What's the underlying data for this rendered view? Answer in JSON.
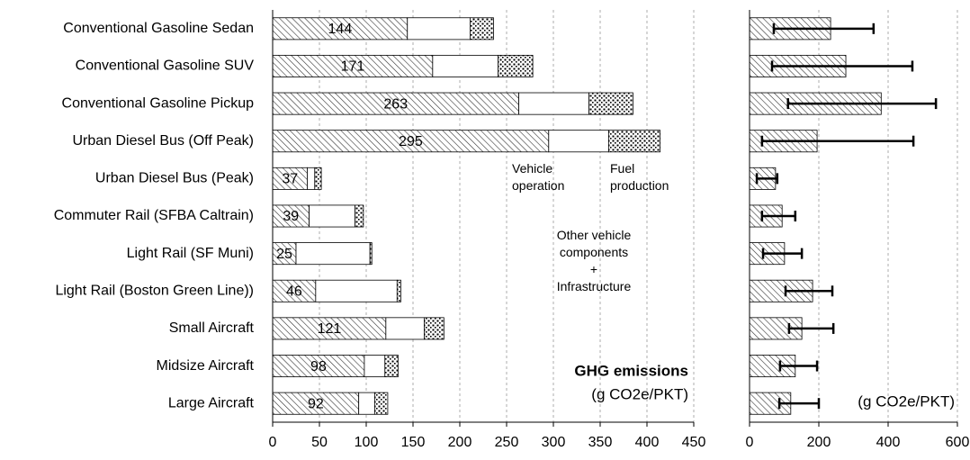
{
  "chart_data": [
    {
      "type": "stacked_bar",
      "orientation": "horizontal",
      "categories": [
        "Conventional Gasoline Sedan",
        "Conventional Gasoline SUV",
        "Conventional Gasoline Pickup",
        "Urban Diesel Bus (Off Peak)",
        "Urban Diesel Bus (Peak)",
        "Commuter Rail (SFBA Caltrain)",
        "Light Rail (SF Muni)",
        "Light Rail (Boston Green Line))",
        "Small Aircraft",
        "Midsize Aircraft",
        "Large Aircraft"
      ],
      "series": [
        {
          "name": "Vehicle\noperation",
          "fill": "hatch",
          "values": [
            144,
            171,
            263,
            295,
            37,
            39,
            25,
            46,
            121,
            98,
            92
          ]
        },
        {
          "name": "Other vehicle\ncomponents\n+\nInfrastructure",
          "fill": "white",
          "values": [
            67,
            70,
            75,
            64,
            8,
            49,
            79,
            87,
            41,
            22,
            17
          ]
        },
        {
          "name": "Fuel\nproduction",
          "fill": "dots",
          "values": [
            25,
            37,
            47,
            55,
            7,
            9,
            2,
            4,
            21,
            14,
            14
          ]
        }
      ],
      "title": "GHG emissions",
      "subtitle": "(g CO2e/PKT)",
      "xlim": [
        0,
        450
      ],
      "xticks": [
        0,
        50,
        100,
        150,
        200,
        250,
        300,
        350,
        400,
        450
      ],
      "grid": true
    },
    {
      "type": "error_bar",
      "orientation": "horizontal",
      "values": [
        234,
        278,
        380,
        195,
        75,
        94,
        101,
        182,
        151,
        132,
        119
      ],
      "low": [
        70,
        65,
        111,
        36,
        21,
        36,
        39,
        104,
        114,
        88,
        86
      ],
      "high": [
        358,
        470,
        538,
        473,
        80,
        132,
        151,
        239,
        242,
        195,
        200
      ],
      "fill": "hatch",
      "subtitle": "(g CO2e/PKT)",
      "xlim": [
        0,
        600
      ],
      "xticks": [
        0,
        200,
        400,
        600
      ],
      "grid": true
    }
  ]
}
